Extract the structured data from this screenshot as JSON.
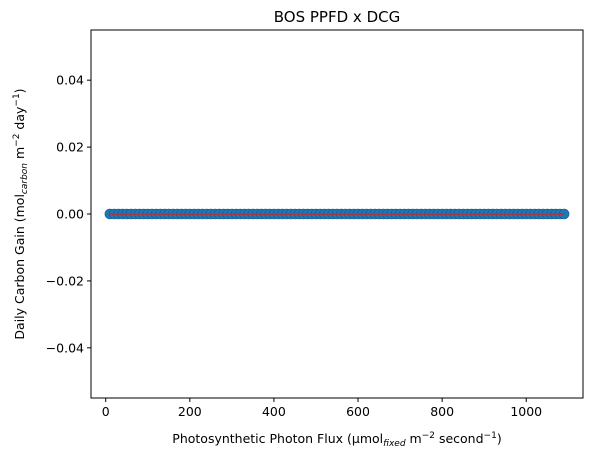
{
  "chart_data": {
    "type": "scatter",
    "title": "BOS PPFD x DCG",
    "xlabel": {
      "pre": "Photosynthetic Photon Flux (μmol",
      "sub": "fixed",
      "mid": " m",
      "sup1": "−2",
      "mid2": " second",
      "sup2": "−1",
      "post": ")"
    },
    "ylabel": {
      "pre": "Daily Carbon Gain (mol",
      "sub": "carbon",
      "mid": " m",
      "sup1": "−2",
      "mid2": " day",
      "sup2": "−1",
      "post": ")"
    },
    "xlim": [
      -35,
      1135
    ],
    "ylim": [
      -0.055,
      0.055
    ],
    "xticks": [
      0,
      200,
      400,
      600,
      800,
      1000
    ],
    "xtick_labels": [
      "0",
      "200",
      "400",
      "600",
      "800",
      "1000"
    ],
    "yticks": [
      -0.04,
      -0.02,
      0.0,
      0.02,
      0.04
    ],
    "ytick_labels": [
      "−0.04",
      "−0.02",
      "0.00",
      "0.02",
      "0.04"
    ],
    "x_range": [
      10,
      1090
    ],
    "point_count": 109,
    "constant_y": 0.0,
    "grid": false,
    "colors": {
      "points": "#1f77b4",
      "fit_line": "#d62728"
    }
  }
}
